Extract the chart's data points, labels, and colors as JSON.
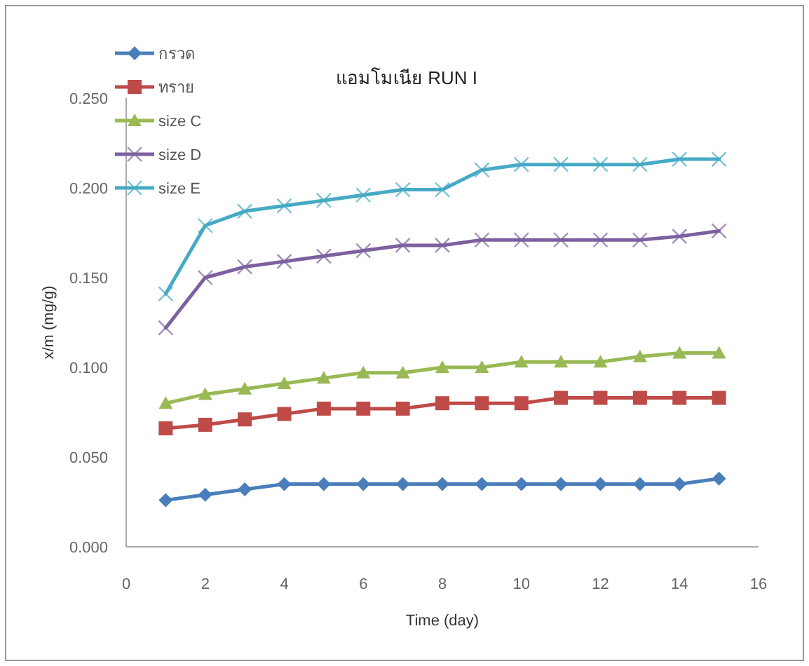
{
  "chart_data": {
    "type": "line",
    "title": "แอมโมเนีย RUN I",
    "xlabel": "Time (day)",
    "ylabel": "x/m (mg/g)",
    "x": [
      1,
      2,
      3,
      4,
      5,
      6,
      7,
      8,
      9,
      10,
      11,
      12,
      13,
      14,
      15
    ],
    "xlim": [
      0,
      16
    ],
    "xticks": [
      0,
      2,
      4,
      6,
      8,
      10,
      12,
      14,
      16
    ],
    "ylim": [
      0,
      0.25
    ],
    "yticks": [
      {
        "value": 0,
        "label": "0.000"
      },
      {
        "value": 0.05,
        "label": "0.050"
      },
      {
        "value": 0.1,
        "label": "0.100"
      },
      {
        "value": 0.15,
        "label": "0.150"
      },
      {
        "value": 0.2,
        "label": "0.200"
      },
      {
        "value": 0.25,
        "label": "0.250"
      }
    ],
    "grid": false,
    "legend": "top left",
    "series": [
      {
        "name": "กรวด",
        "color": "#4a7ebb",
        "marker": "diamond",
        "values": [
          0.026,
          0.029,
          0.032,
          0.035,
          0.035,
          0.035,
          0.035,
          0.035,
          0.035,
          0.035,
          0.035,
          0.035,
          0.035,
          0.035,
          0.038
        ]
      },
      {
        "name": "ทราย",
        "color": "#be4b48",
        "marker": "square",
        "values": [
          0.066,
          0.068,
          0.071,
          0.074,
          0.077,
          0.077,
          0.077,
          0.08,
          0.08,
          0.08,
          0.083,
          0.083,
          0.083,
          0.083,
          0.083
        ]
      },
      {
        "name": "size C",
        "color": "#98b954",
        "marker": "triangle",
        "values": [
          0.08,
          0.085,
          0.088,
          0.091,
          0.094,
          0.097,
          0.097,
          0.1,
          0.1,
          0.103,
          0.103,
          0.103,
          0.106,
          0.108,
          0.108
        ]
      },
      {
        "name": "size D",
        "color": "#7d60a0",
        "marker": "cross",
        "values": [
          0.122,
          0.15,
          0.156,
          0.159,
          0.162,
          0.165,
          0.168,
          0.168,
          0.171,
          0.171,
          0.171,
          0.171,
          0.171,
          0.173,
          0.176
        ]
      },
      {
        "name": "size E",
        "color": "#46aac5",
        "marker": "cross",
        "values": [
          0.141,
          0.179,
          0.187,
          0.19,
          0.193,
          0.196,
          0.199,
          0.199,
          0.21,
          0.213,
          0.213,
          0.213,
          0.213,
          0.216,
          0.216
        ]
      }
    ]
  }
}
